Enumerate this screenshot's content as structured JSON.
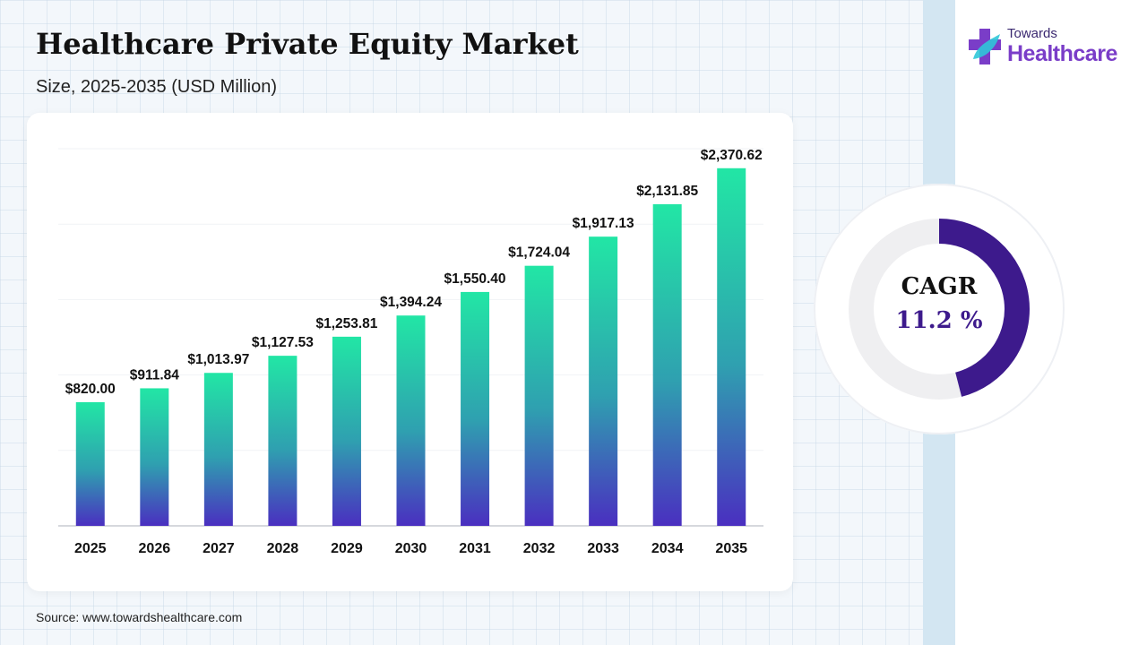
{
  "header": {
    "title": "Healthcare Private Equity Market",
    "subtitle": "Size, 2025-2035 (USD Million)"
  },
  "brand": {
    "top": "Towards",
    "name": "Healthcare",
    "icon": "medical-cross-leaf-icon",
    "colors": {
      "primary": "#7a3dc8",
      "secondary": "#3a2870"
    }
  },
  "cagr": {
    "label": "CAGR",
    "value": "11.2 %",
    "fraction": 0.46,
    "color": "#3d1a8c"
  },
  "source": "Source: www.towardshealthcare.com",
  "chart_data": {
    "type": "bar",
    "title": "Healthcare Private Equity Market",
    "subtitle": "Size, 2025-2035 (USD Million)",
    "xlabel": "",
    "ylabel": "",
    "categories": [
      "2025",
      "2026",
      "2027",
      "2028",
      "2029",
      "2030",
      "2031",
      "2032",
      "2033",
      "2034",
      "2035"
    ],
    "values": [
      820.0,
      911.84,
      1013.97,
      1127.53,
      1253.81,
      1394.24,
      1550.4,
      1724.04,
      1917.13,
      2131.85,
      2370.62
    ],
    "value_labels": [
      "$820.00",
      "$911.84",
      "$1,013.97",
      "$1,127.53",
      "$1,253.81",
      "$1,394.24",
      "$1,550.40",
      "$1,724.04",
      "$1,917.13",
      "$2,131.85",
      "$2,370.62"
    ],
    "ylim": [
      0,
      2500
    ],
    "grid": true,
    "legend": "none",
    "colors": {
      "bar_top": "#22e6a5",
      "bar_mid": "#2fa0b0",
      "bar_bottom": "#4a2fc0"
    }
  }
}
